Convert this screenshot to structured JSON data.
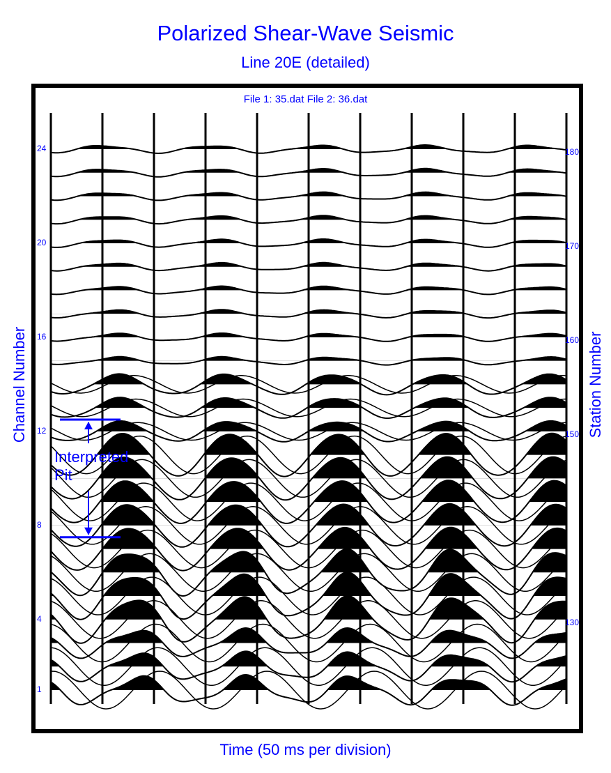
{
  "header": {
    "title": "Polarized Shear-Wave Seismic",
    "subtitle": "Line 20E (detailed)",
    "files_label": "File 1: 35.dat  File 2: 36.dat"
  },
  "axes": {
    "xlabel": "Time (50 ms per division)",
    "ylabel_left": "Channel Number",
    "ylabel_right": "Station Number",
    "left_ticks": [
      {
        "label": "24",
        "channel": 24
      },
      {
        "label": "20",
        "channel": 20
      },
      {
        "label": "16",
        "channel": 16
      },
      {
        "label": "12",
        "channel": 12
      },
      {
        "label": "8",
        "channel": 8
      },
      {
        "label": "4",
        "channel": 4
      },
      {
        "label": "1",
        "channel": 1
      }
    ],
    "right_ticks": [
      {
        "label": "180",
        "channel": 24
      },
      {
        "label": "170",
        "channel": 20
      },
      {
        "label": "160",
        "channel": 16
      },
      {
        "label": "150",
        "channel": 12
      },
      {
        "label": "130",
        "channel": 4
      }
    ]
  },
  "annotation": {
    "line1": "Interpreted",
    "line2": "Pit",
    "top_channel": 12.5,
    "bottom_channel": 7.5
  },
  "colors": {
    "text": "#0000ff",
    "trace": "#000000",
    "frame": "#000000"
  },
  "chart_data": {
    "type": "line",
    "title": "Polarized Shear-Wave Seismic",
    "subtitle": "Line 20E (detailed)",
    "annotations": [
      "File 1: 35.dat  File 2: 36.dat",
      "Interpreted Pit (channels ~8 to ~12)"
    ],
    "xlabel": "Time (50 ms per division)",
    "ylabel": "Channel Number",
    "ylabel_secondary": "Station Number",
    "x_divisions": 10,
    "x_ms_per_division": 50,
    "xlim_ms": [
      0,
      500
    ],
    "channels": [
      1,
      2,
      3,
      4,
      5,
      6,
      7,
      8,
      9,
      10,
      11,
      12,
      13,
      14,
      15,
      16,
      17,
      18,
      19,
      20,
      21,
      22,
      23,
      24
    ],
    "channel_ticks": [
      1,
      4,
      8,
      12,
      16,
      20,
      24
    ],
    "station_ticks": [
      {
        "channel": 24,
        "station": 180
      },
      {
        "channel": 20,
        "station": 170
      },
      {
        "channel": 16,
        "station": 160
      },
      {
        "channel": 12,
        "station": 150
      },
      {
        "channel": 4,
        "station": 130
      }
    ],
    "series": [
      {
        "name": "File 1: 35.dat",
        "style": "wiggle trace, positive lobes filled black"
      },
      {
        "name": "File 2: 36.dat",
        "style": "wiggle trace, overlaid"
      }
    ],
    "grid": true,
    "grid_orientation": "vertical"
  }
}
